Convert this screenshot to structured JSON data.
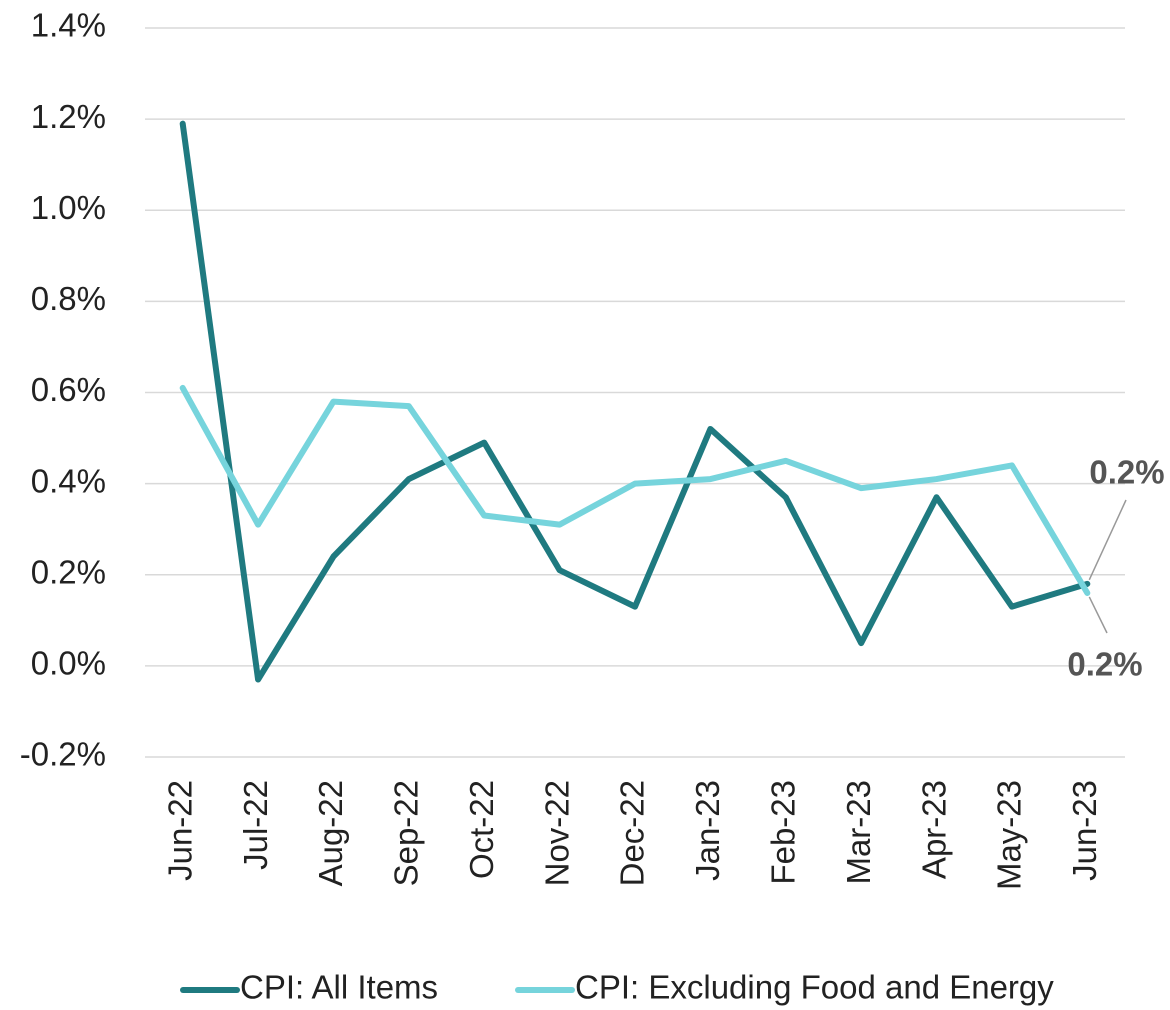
{
  "chart_data": {
    "type": "line",
    "categories": [
      "Jun-22",
      "Jul-22",
      "Aug-22",
      "Sep-22",
      "Oct-22",
      "Nov-22",
      "Dec-22",
      "Jan-23",
      "Feb-23",
      "Mar-23",
      "Apr-23",
      "May-23",
      "Jun-23"
    ],
    "series": [
      {
        "name": "CPI: All Items",
        "color": "#1f7a80",
        "values": [
          1.19,
          -0.03,
          0.24,
          0.41,
          0.49,
          0.21,
          0.13,
          0.52,
          0.37,
          0.05,
          0.37,
          0.13,
          0.18
        ],
        "value_labels": [
          null,
          null,
          null,
          null,
          null,
          null,
          null,
          null,
          null,
          null,
          null,
          null,
          "0.2%"
        ]
      },
      {
        "name": "CPI: Excluding Food and Energy",
        "color": "#76d4dc",
        "values": [
          0.61,
          0.31,
          0.58,
          0.57,
          0.33,
          0.31,
          0.4,
          0.41,
          0.45,
          0.39,
          0.41,
          0.44,
          0.16
        ],
        "value_labels": [
          null,
          null,
          null,
          null,
          null,
          null,
          null,
          null,
          null,
          null,
          null,
          null,
          "0.2%"
        ]
      }
    ],
    "ylim": [
      -0.2,
      1.4
    ],
    "yticks": [
      {
        "value": -0.2,
        "label": "-0.2%"
      },
      {
        "value": 0,
        "label": "0.0%"
      },
      {
        "value": 0.2,
        "label": "0.2%"
      },
      {
        "value": 0.4,
        "label": "0.4%"
      },
      {
        "value": 0.6,
        "label": "0.6%"
      },
      {
        "value": 0.8,
        "label": "0.8%"
      },
      {
        "value": 1.0,
        "label": "1.0%"
      },
      {
        "value": 1.2,
        "label": "1.2%"
      },
      {
        "value": 1.4,
        "label": "1.4%"
      }
    ],
    "grid": true,
    "legend": "bottom"
  }
}
